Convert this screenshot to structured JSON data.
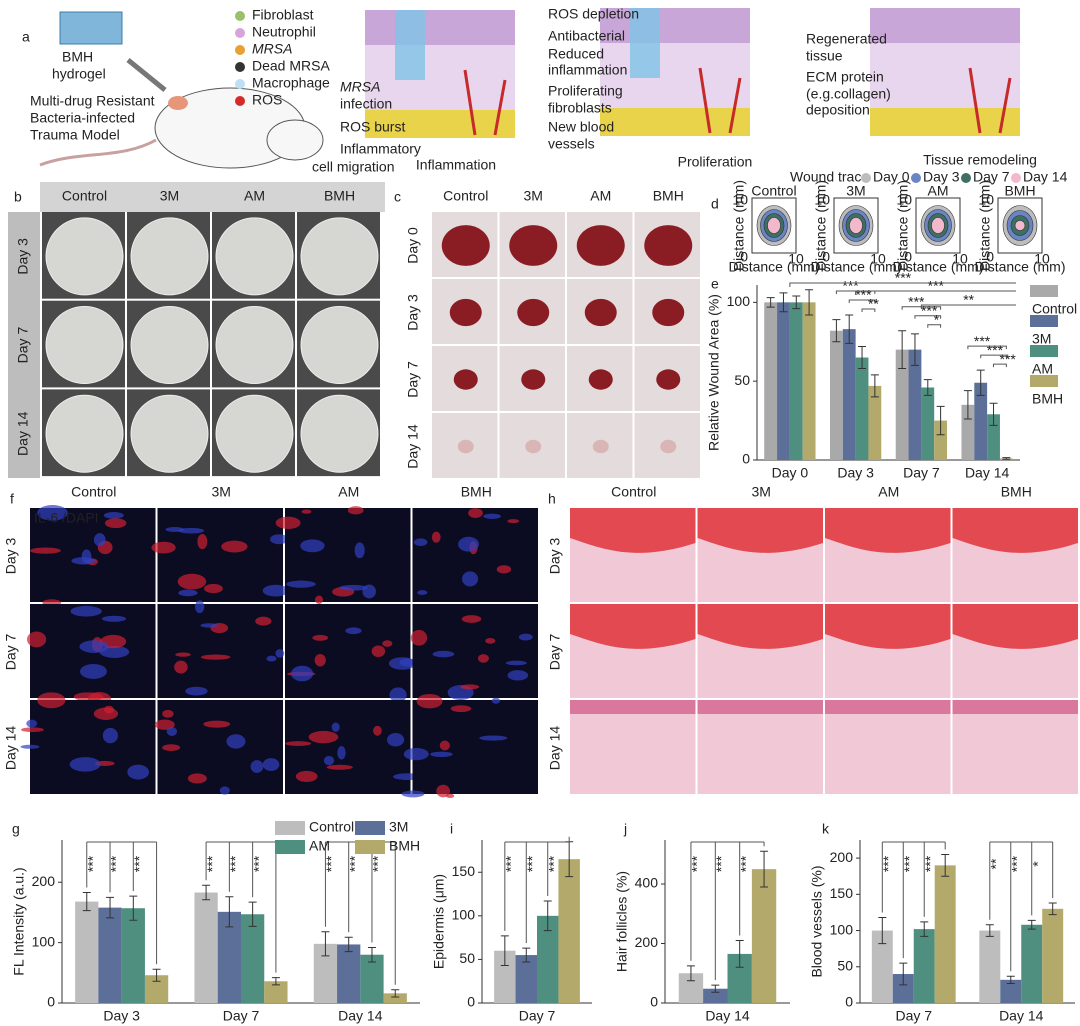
{
  "panel_labels": [
    "a",
    "b",
    "c",
    "d",
    "e",
    "f",
    "g",
    "h",
    "i",
    "j",
    "k"
  ],
  "panel_a": {
    "model_label": [
      "BMH",
      "hydrogel"
    ],
    "model_caption": [
      "Multi-drug Resistant",
      "Bacteria-infected",
      "Trauma Model"
    ],
    "legend": [
      "Fibroblast",
      "Neutrophil",
      "MRSA",
      "Dead MRSA",
      "Macrophage",
      "ROS"
    ],
    "stages": [
      {
        "title": "Inflammation",
        "notes": [
          "MRSA",
          "infection",
          "ROS burst",
          "Inflammatory",
          "cell migration"
        ]
      },
      {
        "title": "Proliferation",
        "notes": [
          "ROS depletion",
          "Antibacterial",
          "Reduced",
          "inflammation",
          "Proliferating",
          "fibroblasts",
          "New blood",
          "vessels"
        ]
      },
      {
        "title": "Tissue remodeling",
        "notes": [
          "Regenerated",
          "tissue",
          "ECM protein",
          "(e.g.collagen)",
          "deposition"
        ]
      }
    ]
  },
  "panel_b": {
    "columns": [
      "Control",
      "3M",
      "AM",
      "BMH"
    ],
    "rows": [
      "Day 3",
      "Day 7",
      "Day 14"
    ]
  },
  "panel_c": {
    "columns": [
      "Control",
      "3M",
      "AM",
      "BMH"
    ],
    "rows": [
      "Day 0",
      "Day 3",
      "Day 7",
      "Day 14"
    ]
  },
  "panel_d": {
    "legend_title": "Wound trace",
    "legend": [
      {
        "name": "Day 0",
        "color": "#bdbdbd"
      },
      {
        "name": "Day 3",
        "color": "#6a85c4"
      },
      {
        "name": "Day 7",
        "color": "#3e6e64"
      },
      {
        "name": "Day 14",
        "color": "#f2b8cc"
      }
    ],
    "plots": [
      "Control",
      "3M",
      "AM",
      "BMH"
    ],
    "xlabel": "Distance (mm)",
    "ylabel": "Distance (mm)",
    "ticks": [
      0,
      10
    ]
  },
  "panel_f": {
    "stain": [
      "IL-6",
      "/DAPI"
    ],
    "columns": [
      "Control",
      "3M",
      "AM",
      "BMH"
    ],
    "rows": [
      "Day 3",
      "Day 7",
      "Day 14"
    ]
  },
  "panel_h": {
    "columns": [
      "Control",
      "3M",
      "AM",
      "BMH"
    ],
    "rows": [
      "Day 3",
      "Day 7",
      "Day 14"
    ]
  },
  "chart_data": [
    {
      "type": "bar",
      "ylabel": "Relative Wound Area (%)",
      "categories": [
        "Day 0",
        "Day 3",
        "Day 7",
        "Day 14"
      ],
      "series": [
        {
          "name": "Control",
          "color": "#a9a9a9",
          "values": [
            100,
            82,
            70,
            35
          ],
          "errors": [
            3,
            7,
            12,
            9
          ]
        },
        {
          "name": "3M",
          "color": "#5b6f98",
          "values": [
            100,
            83,
            70,
            49
          ],
          "errors": [
            6,
            9,
            10,
            8
          ]
        },
        {
          "name": "AM",
          "color": "#4f8f80",
          "values": [
            100,
            65,
            46,
            29
          ],
          "errors": [
            4,
            7,
            5,
            7
          ]
        },
        {
          "name": "BMH",
          "color": "#b3a96a",
          "values": [
            100,
            47,
            25,
            1
          ],
          "errors": [
            8,
            7,
            9,
            0.5
          ]
        }
      ],
      "ylim": [
        0,
        111
      ],
      "yticks": [
        0,
        50,
        100
      ],
      "legend": "right",
      "significance_style": "horizontal",
      "significance": [
        [],
        [
          "***",
          "***",
          "**"
        ],
        [
          "***",
          "***",
          "*"
        ],
        [
          "***",
          "***",
          "***"
        ]
      ],
      "significance_top": [
        "***",
        "***",
        "**"
      ]
    },
    {
      "type": "bar",
      "ylabel": "FL Intensity (a.u.)",
      "categories": [
        "Day 3",
        "Day 7",
        "Day 14"
      ],
      "series": [
        {
          "name": "Control",
          "color": "#bdbdbd",
          "values": [
            168,
            183,
            98
          ],
          "errors": [
            15,
            12,
            20
          ]
        },
        {
          "name": "3M",
          "color": "#5b6f98",
          "values": [
            158,
            151,
            97
          ],
          "errors": [
            17,
            25,
            12
          ]
        },
        {
          "name": "AM",
          "color": "#4f8f80",
          "values": [
            157,
            147,
            80
          ],
          "errors": [
            20,
            20,
            12
          ]
        },
        {
          "name": "BMH",
          "color": "#b3a96a",
          "values": [
            46,
            36,
            16
          ],
          "errors": [
            10,
            6,
            6
          ]
        }
      ],
      "ylim": [
        0,
        270
      ],
      "yticks": [
        0,
        100,
        200
      ],
      "legend": "top",
      "significance_style": "vertical",
      "significance": [
        [
          "***",
          "***",
          "***"
        ],
        [
          "***",
          "***",
          "***"
        ],
        [
          "***",
          "***",
          "***"
        ]
      ]
    },
    {
      "type": "bar",
      "ylabel": "Epidermis (μm)",
      "categories": [
        "Day 7"
      ],
      "series": [
        {
          "color": "#bdbdbd",
          "values": [
            60
          ],
          "errors": [
            17
          ]
        },
        {
          "color": "#5b6f98",
          "values": [
            55
          ],
          "errors": [
            8
          ]
        },
        {
          "color": "#4f8f80",
          "values": [
            100
          ],
          "errors": [
            17
          ]
        },
        {
          "color": "#b3a96a",
          "values": [
            165
          ],
          "errors": [
            20
          ]
        }
      ],
      "ylim": [
        0,
        187
      ],
      "yticks": [
        0,
        50,
        100,
        150
      ],
      "significance_style": "vertical",
      "significance": [
        [
          "***",
          "***",
          "***"
        ]
      ]
    },
    {
      "type": "bar",
      "ylabel": "Hair follicles (%)",
      "categories": [
        "Day 14"
      ],
      "series": [
        {
          "color": "#bdbdbd",
          "values": [
            100
          ],
          "errors": [
            25
          ]
        },
        {
          "color": "#5b6f98",
          "values": [
            48
          ],
          "errors": [
            12
          ]
        },
        {
          "color": "#4f8f80",
          "values": [
            165
          ],
          "errors": [
            45
          ]
        },
        {
          "color": "#b3a96a",
          "values": [
            450
          ],
          "errors": [
            60
          ]
        }
      ],
      "ylim": [
        0,
        548
      ],
      "yticks": [
        0,
        200,
        400
      ],
      "significance_style": "vertical",
      "significance": [
        [
          "***",
          "***",
          "***"
        ]
      ]
    },
    {
      "type": "bar",
      "ylabel": "Blood vessels (%)",
      "categories": [
        "Day 7",
        "Day 14"
      ],
      "series": [
        {
          "color": "#bdbdbd",
          "values": [
            100,
            100
          ],
          "errors": [
            18,
            8
          ]
        },
        {
          "color": "#5b6f98",
          "values": [
            40,
            32
          ],
          "errors": [
            15,
            5
          ]
        },
        {
          "color": "#4f8f80",
          "values": [
            102,
            108
          ],
          "errors": [
            10,
            6
          ]
        },
        {
          "color": "#b3a96a",
          "values": [
            190,
            130
          ],
          "errors": [
            15,
            8
          ]
        }
      ],
      "ylim": [
        0,
        225
      ],
      "yticks": [
        0,
        50,
        100,
        150,
        200
      ],
      "significance_style": "vertical",
      "significance": [
        [
          "***",
          "***",
          "***"
        ],
        [
          "**",
          "***",
          "*"
        ]
      ]
    }
  ]
}
